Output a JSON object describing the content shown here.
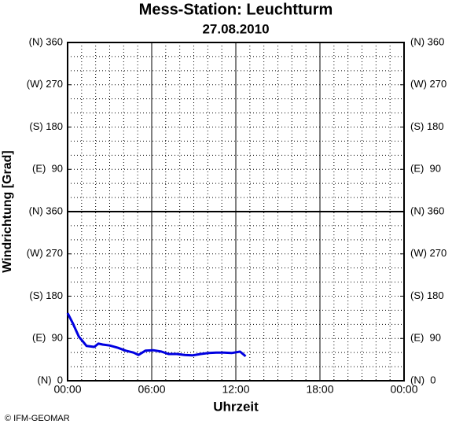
{
  "chart_data": {
    "type": "line",
    "title": "Mess-Station: Leuchtturm",
    "subtitle": "27.08.2010",
    "y_label": "Windrichtung [Grad]",
    "x_label": "Uhrzeit",
    "footer": "© IFM-GEOMAR",
    "color": "#0000e0",
    "x": [
      0,
      0.34,
      0.8,
      1.05,
      1.35,
      1.9,
      2.2,
      2.5,
      3,
      3.6,
      4.15,
      4.7,
      5.05,
      5.55,
      6.1,
      6.7,
      7.2,
      7.8,
      8.35,
      8.9,
      9.5,
      10.05,
      10.6,
      11.15,
      11.7,
      12.3,
      12.7
    ],
    "values": [
      144,
      124,
      94,
      85,
      74,
      72,
      79,
      77,
      75,
      70,
      64,
      60,
      55,
      64,
      65,
      62,
      57,
      57,
      55,
      54,
      57,
      59,
      60,
      60,
      59,
      62,
      52
    ],
    "xlim": [
      0,
      24
    ],
    "xticks": [
      {
        "value": 0,
        "label": "00:00"
      },
      {
        "value": 6,
        "label": "06:00"
      },
      {
        "value": 12,
        "label": "12:00"
      },
      {
        "value": 18,
        "label": "18:00"
      },
      {
        "value": 24,
        "label": "00:00"
      }
    ],
    "ylim": [
      0,
      720
    ],
    "yticks": [
      {
        "value": 0,
        "label": "(N)  0"
      },
      {
        "value": 90,
        "label": "(E)  90"
      },
      {
        "value": 180,
        "label": "(S) 180"
      },
      {
        "value": 270,
        "label": "(W) 270"
      },
      {
        "value": 360,
        "label": "(N) 360"
      },
      {
        "value": 450,
        "label": "(E)  90"
      },
      {
        "value": 540,
        "label": "(S) 180"
      },
      {
        "value": 630,
        "label": "(W) 270"
      },
      {
        "value": 720,
        "label": "(N) 360"
      }
    ],
    "grid": true,
    "minor_grid": {
      "x": 1,
      "y": 30
    },
    "divider_y": 360
  }
}
